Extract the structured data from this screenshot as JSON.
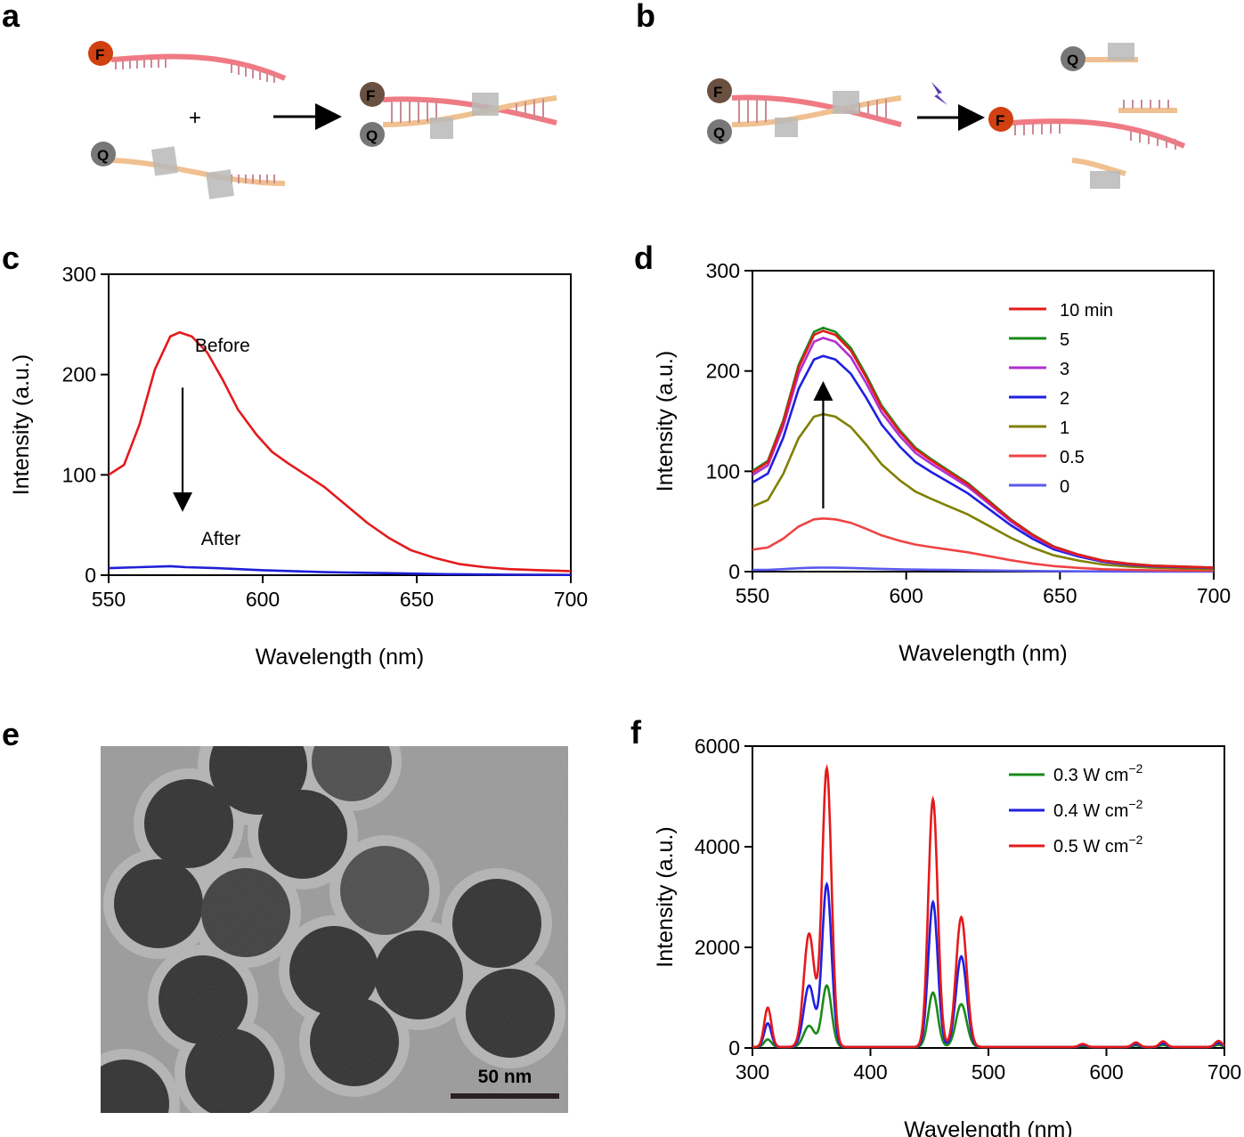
{
  "panels": {
    "a": {
      "label": "a",
      "fluor": "F",
      "quencher": "Q",
      "plus": "+"
    },
    "b": {
      "label": "b",
      "fluor": "F",
      "quencher": "Q"
    },
    "e": {
      "label": "e",
      "scalebar": "50 nm"
    }
  },
  "chart_data": [
    {
      "panel": "c",
      "type": "line",
      "xlabel": "Wavelength (nm)",
      "ylabel": "Intensity (a.u.)",
      "xlim": [
        550,
        700
      ],
      "ylim": [
        0,
        300
      ],
      "xticks": [
        550,
        600,
        650,
        700
      ],
      "yticks": [
        0,
        100,
        200,
        300
      ],
      "annotations": [
        "Before",
        "After"
      ],
      "series": [
        {
          "name": "Before",
          "color": "#e41a1c",
          "shape": "c",
          "points": [
            [
              550,
              100
            ],
            [
              555,
              110
            ],
            [
              560,
              150
            ],
            [
              565,
              205
            ],
            [
              570,
              238
            ],
            [
              573,
              242
            ],
            [
              577,
              238
            ],
            [
              582,
              222
            ],
            [
              587,
              195
            ],
            [
              592,
              165
            ],
            [
              598,
              140
            ],
            [
              603,
              123
            ],
            [
              608,
              112
            ],
            [
              614,
              100
            ],
            [
              620,
              88
            ],
            [
              627,
              70
            ],
            [
              634,
              52
            ],
            [
              641,
              37
            ],
            [
              648,
              25
            ],
            [
              656,
              17
            ],
            [
              664,
              11
            ],
            [
              672,
              8
            ],
            [
              680,
              6
            ],
            [
              690,
              5
            ],
            [
              700,
              4
            ]
          ]
        },
        {
          "name": "After",
          "color": "#1f1fd6",
          "shape": "c",
          "points": [
            [
              550,
              7
            ],
            [
              560,
              8
            ],
            [
              570,
              9
            ],
            [
              575,
              8
            ],
            [
              585,
              7
            ],
            [
              600,
              5
            ],
            [
              620,
              3
            ],
            [
              640,
              2
            ],
            [
              660,
              1
            ],
            [
              680,
              0.5
            ],
            [
              700,
              0.3
            ]
          ]
        }
      ]
    },
    {
      "panel": "d",
      "type": "line",
      "xlabel": "Wavelength (nm)",
      "ylabel": "Intensity (a.u.)",
      "xlim": [
        550,
        700
      ],
      "ylim": [
        0,
        300
      ],
      "xticks": [
        550,
        600,
        650,
        700
      ],
      "yticks": [
        0,
        100,
        200,
        300
      ],
      "series": [
        {
          "name": "10 min",
          "color": "#e41a1c",
          "peak": 240,
          "start": 98
        },
        {
          "name": "5",
          "color": "#1a8a1a",
          "peak": 243,
          "start": 100
        },
        {
          "name": "3",
          "color": "#b030d0",
          "peak": 233,
          "start": 96
        },
        {
          "name": "2",
          "color": "#1f1fe0",
          "peak": 215,
          "start": 90
        },
        {
          "name": "1",
          "color": "#808000",
          "peak": 157,
          "start": 67
        },
        {
          "name": "0.5",
          "color": "#ee4444",
          "peak": 53,
          "start": 22
        },
        {
          "name": "0",
          "color": "#5a5aee",
          "peak": 4,
          "start": 3
        }
      ]
    },
    {
      "panel": "f",
      "type": "line",
      "xlabel": "Wavelength (nm)",
      "ylabel": "Intensity (a.u.)",
      "xlim": [
        300,
        700
      ],
      "ylim": [
        0,
        6000
      ],
      "xticks": [
        300,
        400,
        500,
        600,
        700
      ],
      "yticks": [
        0,
        2000,
        4000,
        6000
      ],
      "series": [
        {
          "name": "0.3 W cm",
          "sup": "−2",
          "color": "#1a8a1a",
          "peaks": [
            [
              313,
              150
            ],
            [
              348,
              420
            ],
            [
              363,
              1220
            ],
            [
              453,
              1080
            ],
            [
              477,
              850
            ]
          ]
        },
        {
          "name": "0.4 W cm",
          "sup": "−2",
          "color": "#1f1fe0",
          "peaks": [
            [
              313,
              470
            ],
            [
              348,
              1220
            ],
            [
              363,
              3230
            ],
            [
              453,
              2880
            ],
            [
              477,
              1800
            ]
          ]
        },
        {
          "name": "0.5 W cm",
          "sup": "−2",
          "color": "#e41a1c",
          "peaks": [
            [
              313,
              780
            ],
            [
              348,
              2250
            ],
            [
              363,
              5530
            ],
            [
              453,
              4920
            ],
            [
              477,
              2580
            ]
          ]
        }
      ],
      "minor_peaks": [
        [
          580,
          60
        ],
        [
          625,
          90
        ],
        [
          648,
          110
        ],
        [
          695,
          120
        ]
      ]
    }
  ]
}
